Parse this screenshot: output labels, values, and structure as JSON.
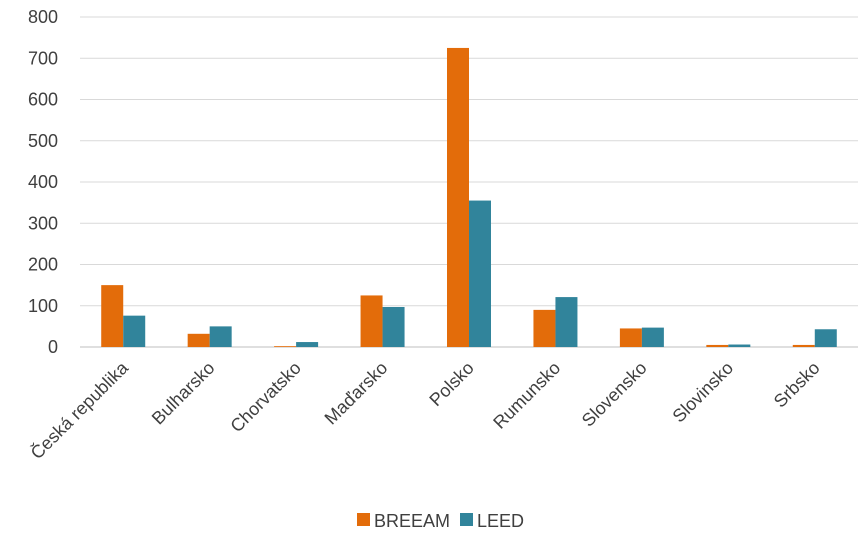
{
  "chart_data": {
    "type": "bar",
    "title": "",
    "xlabel": "",
    "ylabel": "",
    "categories": [
      "Česká republika",
      "Bulharsko",
      "Chorvatsko",
      "Maďarsko",
      "Polsko",
      "Rumunsko",
      "Slovensko",
      "Slovinsko",
      "Srbsko"
    ],
    "series": [
      {
        "name": "BREEAM",
        "color": "#e36c0a",
        "values": [
          150,
          32,
          2,
          125,
          725,
          90,
          45,
          5,
          5
        ]
      },
      {
        "name": "LEED",
        "color": "#31849b",
        "values": [
          76,
          50,
          12,
          97,
          355,
          121,
          47,
          6,
          43
        ]
      }
    ],
    "ylim": [
      0,
      800
    ],
    "yticks": [
      0,
      100,
      200,
      300,
      400,
      500,
      600,
      700,
      800
    ],
    "grid": true,
    "legend_position": "bottom"
  }
}
